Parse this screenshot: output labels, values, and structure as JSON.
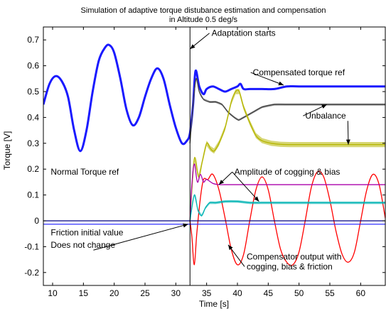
{
  "chart_data": {
    "type": "line",
    "title": "Simulation of adaptive torque distubance estimation and compensation",
    "subtitle": "in Altitude 0.5 deg/s",
    "xlabel": "Time [s]",
    "ylabel": "Torque [V]",
    "xlim": [
      8.5,
      64
    ],
    "ylim": [
      -0.25,
      0.75
    ],
    "xticks": [
      "10",
      "15",
      "20",
      "25",
      "30",
      "35",
      "40",
      "45",
      "50",
      "55",
      "60"
    ],
    "yticks": [
      "-0.2",
      "-0.1",
      "0",
      "0.1",
      "0.2",
      "0.3",
      "0.4",
      "0.5",
      "0.6",
      "0.7"
    ],
    "xtick_values": [
      10,
      15,
      20,
      25,
      30,
      35,
      40,
      45,
      50,
      55,
      60
    ],
    "ytick_values": [
      -0.2,
      -0.1,
      0,
      0.1,
      0.2,
      0.3,
      0.4,
      0.5,
      0.6,
      0.7
    ],
    "grid": false,
    "adaptation_start_x": 32.3,
    "series": [
      {
        "color": "#1a1aff",
        "x": [
          8.5,
          9.5,
          10.5,
          11.5,
          12.5,
          13.5,
          14.5,
          15.5,
          16.5,
          17.5,
          18.5,
          19.2,
          20.0,
          21.0,
          22.0,
          23.0,
          24.0,
          25.0,
          26.0,
          27.0,
          28.0,
          29.0,
          30.0,
          31.0,
          31.8,
          32.3,
          32.8,
          33.2,
          33.8,
          34.5,
          35.0,
          36.0,
          37.0,
          38.0,
          39.0,
          40.0,
          40.5,
          41.0,
          42.0,
          44.0,
          46.0,
          48.0,
          50.0,
          55.0,
          60.0,
          64.0
        ],
        "y": [
          0.45,
          0.53,
          0.56,
          0.54,
          0.48,
          0.35,
          0.27,
          0.35,
          0.5,
          0.62,
          0.67,
          0.68,
          0.65,
          0.55,
          0.43,
          0.37,
          0.4,
          0.48,
          0.55,
          0.59,
          0.55,
          0.45,
          0.36,
          0.3,
          0.31,
          0.34,
          0.45,
          0.58,
          0.52,
          0.49,
          0.51,
          0.52,
          0.51,
          0.5,
          0.51,
          0.52,
          0.53,
          0.51,
          0.51,
          0.51,
          0.51,
          0.52,
          0.52,
          0.52,
          0.52,
          0.52
        ]
      },
      {
        "color": "#444444",
        "x": [
          32.3,
          32.8,
          33.3,
          33.8,
          34.5,
          35.5,
          36.5,
          37.5,
          38.5,
          39.5,
          40.2,
          41.0,
          42.5,
          44.0,
          46.0,
          48.0,
          50.0,
          55.0,
          60.0,
          64.0
        ],
        "y": [
          0.3,
          0.45,
          0.55,
          0.5,
          0.47,
          0.46,
          0.46,
          0.45,
          0.42,
          0.4,
          0.39,
          0.4,
          0.42,
          0.44,
          0.45,
          0.45,
          0.45,
          0.45,
          0.45,
          0.45
        ],
        "band": 0.004
      },
      {
        "color": "#b5b500",
        "x": [
          32.3,
          33.0,
          33.7,
          34.3,
          35.0,
          35.6,
          36.2,
          37.0,
          38.0,
          39.0,
          39.7,
          40.3,
          41.0,
          42.0,
          43.0,
          44.0,
          45.5,
          47.0,
          48.5,
          50.0,
          55.0,
          60.0,
          64.0
        ],
        "y": [
          0.0,
          0.24,
          0.17,
          0.23,
          0.3,
          0.28,
          0.27,
          0.3,
          0.36,
          0.46,
          0.5,
          0.5,
          0.44,
          0.38,
          0.33,
          0.31,
          0.3,
          0.296,
          0.295,
          0.295,
          0.295,
          0.295,
          0.295
        ],
        "band": 0.01
      },
      {
        "color": "#ff0000",
        "x": [
          32.3,
          32.6,
          33.0,
          33.4,
          34.0,
          34.5,
          35.2,
          36.0,
          37.0,
          38.0,
          39.0,
          40.0,
          41.0,
          42.0,
          43.0,
          44.0,
          45.0,
          46.0,
          47.0,
          48.0,
          49.0,
          50.0,
          51.0,
          52.0,
          53.0,
          54.0,
          55.0,
          56.0,
          57.0,
          58.0,
          59.0,
          60.0,
          61.0,
          62.0,
          63.0,
          64.0
        ],
        "y": [
          0.0,
          -0.06,
          -0.17,
          -0.05,
          0.09,
          0.16,
          0.16,
          0.18,
          0.12,
          0.01,
          -0.11,
          -0.17,
          -0.13,
          0.0,
          0.12,
          0.17,
          0.12,
          0.0,
          -0.11,
          -0.16,
          -0.17,
          -0.12,
          0.0,
          0.13,
          0.19,
          0.17,
          0.08,
          -0.04,
          -0.13,
          -0.16,
          -0.12,
          0.0,
          0.12,
          0.18,
          0.14,
          0.01
        ]
      },
      {
        "color": "#aa00aa",
        "x": [
          32.3,
          32.6,
          33.0,
          33.5,
          34.0,
          34.5,
          35.0,
          36.0,
          37.0,
          38.0,
          40.0,
          45.0,
          50.0,
          55.0,
          60.0,
          64.0
        ],
        "y": [
          0.0,
          0.14,
          0.22,
          0.15,
          0.18,
          0.15,
          0.16,
          0.145,
          0.14,
          0.14,
          0.14,
          0.14,
          0.14,
          0.14,
          0.14,
          0.14
        ]
      },
      {
        "color": "#00b3b3",
        "x": [
          32.3,
          33.0,
          33.6,
          34.2,
          34.8,
          35.5,
          36.5,
          38.0,
          40.0,
          42.0,
          44.0,
          46.0,
          48.0,
          50.0,
          55.0,
          60.0,
          64.0
        ],
        "y": [
          0.0,
          0.1,
          0.04,
          0.02,
          0.05,
          0.07,
          0.07,
          0.075,
          0.075,
          0.07,
          0.07,
          0.07,
          0.07,
          0.07,
          0.07,
          0.07,
          0.07
        ],
        "band": 0.005
      },
      {
        "color": "#000080",
        "x": [
          8.5,
          64.0
        ],
        "y": [
          0.0,
          0.0
        ]
      },
      {
        "color": "#3333ff",
        "x": [
          8.5,
          64.0
        ],
        "y": [
          -0.013,
          -0.013
        ]
      }
    ],
    "annotations": [
      {
        "text": "Adaptation starts",
        "x": 35.8,
        "y": 0.715,
        "arrow_to": [
          32.3,
          0.665
        ]
      },
      {
        "text": "Compensated torque ref",
        "x": 42.5,
        "y": 0.563,
        "arrow_to": [
          47.5,
          0.525
        ]
      },
      {
        "text": "Unbalance",
        "x": 51.0,
        "y": 0.395,
        "arrow_to": [
          54.5,
          0.45
        ]
      },
      {
        "text": "",
        "x": 51.0,
        "y": 0.395,
        "arrow_to": [
          58.0,
          0.295
        ]
      },
      {
        "text": "Normal Torque ref",
        "x": 9.7,
        "y": 0.178
      },
      {
        "text": "Amplitude of cogging & bias",
        "x": 39.5,
        "y": 0.178,
        "arrow_to": [
          37.0,
          0.14
        ]
      },
      {
        "text": "",
        "x": 39.5,
        "y": 0.178,
        "arrow_to": [
          43.5,
          0.075
        ]
      },
      {
        "text": "Friction initial value",
        "x": 9.7,
        "y": -0.057
      },
      {
        "text": "Does not change",
        "x": 9.7,
        "y": -0.105,
        "arrow_to": [
          32.0,
          -0.013
        ]
      },
      {
        "text": "Compensator output with",
        "x": 41.5,
        "y": -0.15
      },
      {
        "text": "cogging, bias & friction",
        "x": 41.5,
        "y": -0.188,
        "arrow_to": [
          38.5,
          -0.093
        ]
      }
    ]
  }
}
